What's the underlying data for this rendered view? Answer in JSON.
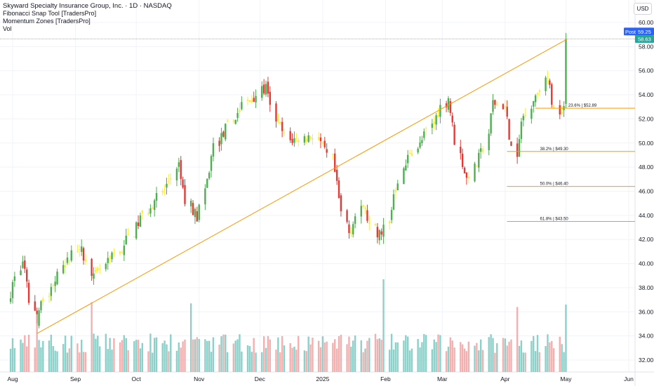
{
  "legend": {
    "title": "Skyward Specialty Insurance Group, Inc. · 1D · NASDAQ",
    "ind1": "Fibonacci Snap Tool [TradersPro]",
    "ind2": "Momentum Zones [TradersPro]",
    "vol": "Vol"
  },
  "currency": "USD",
  "chart_data": {
    "type": "candlestick",
    "y_axis": {
      "ticks": [
        32,
        34,
        36,
        38,
        40,
        42,
        44,
        46,
        48,
        50,
        52,
        54,
        56,
        58,
        60
      ],
      "tick_labels": [
        "32.00",
        "34.00",
        "36.00",
        "38.00",
        "40.00",
        "42.00",
        "44.00",
        "46.00",
        "48.00",
        "50.00",
        "52.00",
        "54.00",
        "56.00",
        "58.00",
        "60.00"
      ],
      "range": [
        31.0,
        61.0
      ]
    },
    "x_axis": {
      "labels": [
        {
          "label": "Aug",
          "date": "2024-08-01"
        },
        {
          "label": "Sep",
          "date": "2024-09-01"
        },
        {
          "label": "Oct",
          "date": "2024-10-01"
        },
        {
          "label": "Nov",
          "date": "2024-11-01"
        },
        {
          "label": "Dec",
          "date": "2024-12-01"
        },
        {
          "label": "2025",
          "date": "2025-01-01"
        },
        {
          "label": "Feb",
          "date": "2025-02-01"
        },
        {
          "label": "Mar",
          "date": "2025-03-01"
        },
        {
          "label": "Apr",
          "date": "2025-04-01"
        },
        {
          "label": "May",
          "date": "2025-05-01"
        },
        {
          "label": "Jun",
          "date": "2025-06-01"
        }
      ]
    },
    "colors": {
      "up": "#4caf50",
      "down": "#e53935",
      "neutral": "#ffeb3b",
      "vol_up": "#80cbc4",
      "vol_down": "#f4a6a6",
      "trend": "#ff9800",
      "fib": "#ff9800"
    },
    "key_points": [
      {
        "date": "2024-07-31",
        "close": 37.6
      },
      {
        "date": "2024-08-06",
        "close": 40.2
      },
      {
        "date": "2024-08-13",
        "close": 35.0
      },
      {
        "date": "2024-08-16",
        "close": 37.2
      },
      {
        "date": "2024-09-03",
        "close": 41.6
      },
      {
        "date": "2024-09-10",
        "close": 38.8
      },
      {
        "date": "2024-09-24",
        "close": 41.2
      },
      {
        "date": "2024-10-08",
        "close": 44.8
      },
      {
        "date": "2024-10-16",
        "close": 46.4
      },
      {
        "date": "2024-10-22",
        "close": 48.0
      },
      {
        "date": "2024-10-25",
        "close": 45.2
      },
      {
        "date": "2024-10-31",
        "close": 43.8
      },
      {
        "date": "2024-11-08",
        "close": 49.8
      },
      {
        "date": "2024-11-22",
        "close": 53.2
      },
      {
        "date": "2024-12-04",
        "close": 54.6
      },
      {
        "date": "2024-12-09",
        "close": 52.0
      },
      {
        "date": "2024-12-16",
        "close": 50.2
      },
      {
        "date": "2024-12-27",
        "close": 50.6
      },
      {
        "date": "2025-01-06",
        "close": 48.6
      },
      {
        "date": "2025-01-10",
        "close": 44.2
      },
      {
        "date": "2025-01-14",
        "close": 42.6
      },
      {
        "date": "2025-01-21",
        "close": 44.8
      },
      {
        "date": "2025-01-28",
        "close": 42.2
      },
      {
        "date": "2025-02-03",
        "close": 43.4
      },
      {
        "date": "2025-02-05",
        "close": 45.8
      },
      {
        "date": "2025-02-13",
        "close": 49.4
      },
      {
        "date": "2025-02-18",
        "close": 49.8
      },
      {
        "date": "2025-02-26",
        "close": 52.2
      },
      {
        "date": "2025-03-04",
        "close": 53.8
      },
      {
        "date": "2025-03-10",
        "close": 49.0
      },
      {
        "date": "2025-03-13",
        "close": 47.0
      },
      {
        "date": "2025-03-21",
        "close": 49.6
      },
      {
        "date": "2025-03-26",
        "close": 53.4
      },
      {
        "date": "2025-04-01",
        "close": 53.0
      },
      {
        "date": "2025-04-04",
        "close": 49.6
      },
      {
        "date": "2025-04-07",
        "close": 48.4
      },
      {
        "date": "2025-04-09",
        "close": 51.8
      },
      {
        "date": "2025-04-16",
        "close": 54.0
      },
      {
        "date": "2025-04-22",
        "close": 55.4
      },
      {
        "date": "2025-04-25",
        "close": 52.6
      },
      {
        "date": "2025-04-30",
        "close": 53.2
      },
      {
        "date": "2025-05-01",
        "close": 58.63
      }
    ],
    "volume_note": "volume histogram at bottom; spikes on 2024-09-09, 2024-10-28, 2025-01-31 and 2025-05-01",
    "trendline": {
      "from": {
        "date": "2024-08-13",
        "price": 34.2
      },
      "to": {
        "date": "2025-05-01",
        "price": 58.63
      }
    },
    "fib_levels": [
      {
        "label": "23.6% | $52.89",
        "price": 52.89
      },
      {
        "label": "38.2% | $49.30",
        "price": 49.3
      },
      {
        "label": "50.0% | $46.40",
        "price": 46.4
      },
      {
        "label": "61.8% | $43.50",
        "price": 43.5
      }
    ],
    "badges": [
      {
        "text": "Post",
        "value": "59.25",
        "color": "#2962ff"
      },
      {
        "text": "",
        "value": "58.63",
        "color": "#26a69a"
      }
    ]
  }
}
